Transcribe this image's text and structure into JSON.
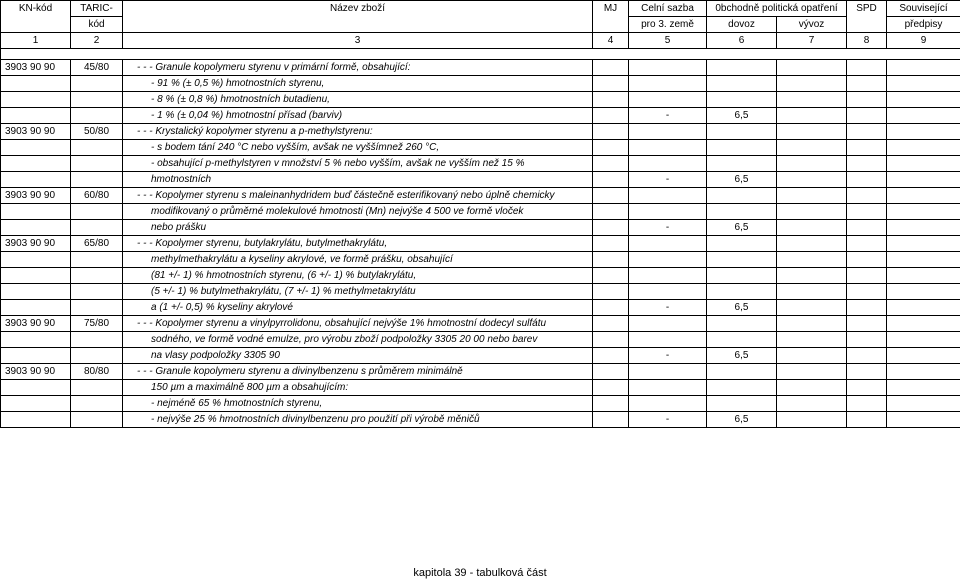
{
  "header": {
    "c1a": "KN-kód",
    "c1b": "",
    "c2a": "TARIC-",
    "c2b": "kód",
    "c3a": "Název zboží",
    "c3b": "",
    "c4a": "MJ",
    "c4b": "",
    "c5a": "Celní sazba",
    "c5b": "pro 3. země",
    "c67a": "0bchodně politická opatření",
    "c6b": "dovoz",
    "c7b": "vývoz",
    "c8a": "SPD",
    "c8b": "",
    "c9a": "Související",
    "c9b": "předpisy",
    "n1": "1",
    "n2": "2",
    "n3": "3",
    "n4": "4",
    "n5": "5",
    "n6": "6",
    "n7": "7",
    "n8": "8",
    "n9": "9"
  },
  "rows": [
    {
      "kn": "3903 90 90",
      "taric": "45/80",
      "desc": "- - - Granule kopolymeru styrenu v primární formě, obsahující:",
      "ital": true
    },
    {
      "desc": "- 91 % (± 0,5 %) hmotnostních styrenu,",
      "ital": true,
      "ind": "ind2"
    },
    {
      "desc": "- 8 % (± 0,8 %) hmotnostních butadienu,",
      "ital": true,
      "ind": "ind2"
    },
    {
      "desc": "- 1 % (± 0,04 %) hmotnostní přísad (barviv)",
      "ital": true,
      "ind": "ind2",
      "c5": "-",
      "c6": "6,5"
    },
    {
      "kn": "3903 90 90",
      "taric": "50/80",
      "desc": "- - - Krystalický kopolymer styrenu a p-methylstyrenu:",
      "ital": true
    },
    {
      "desc": "- s bodem tání 240 °C nebo vyšším, avšak ne vyššímnež 260 °C,",
      "ital": true,
      "ind": "ind2"
    },
    {
      "desc": "- obsahující p-methylstyren v množství 5 % nebo vyšším, avšak ne vyšším než 15 %",
      "ital": true,
      "ind": "ind2"
    },
    {
      "desc": "hmotnostních",
      "ital": true,
      "ind": "ind2",
      "c5": "-",
      "c6": "6,5"
    },
    {
      "kn": "3903 90 90",
      "taric": "60/80",
      "desc": "- - - Kopolymer styrenu s maleinanhydridem buď částečně esterifikovaný nebo úplně chemicky",
      "ital": true
    },
    {
      "desc": "modifikovaný o průměrné molekulové hmotnosti (Mn) nejvýše 4 500 ve formě vloček",
      "ital": true,
      "ind": "ind2"
    },
    {
      "desc": "nebo prášku",
      "ital": true,
      "ind": "ind2",
      "c5": "-",
      "c6": "6,5"
    },
    {
      "kn": "3903 90 90",
      "taric": "65/80",
      "desc": "- - - Kopolymer styrenu, butylakrylátu, butylmethakrylátu,",
      "ital": true
    },
    {
      "desc": "methylmethakrylátu a kyseliny akrylové, ve formě prášku, obsahující",
      "ital": true,
      "ind": "ind2"
    },
    {
      "desc": "(81 +/- 1) % hmotnostních styrenu, (6 +/- 1) % butylakrylátu,",
      "ital": true,
      "ind": "ind2"
    },
    {
      "desc": "(5 +/- 1) % butylmethakrylátu, (7 +/- 1) % methylmetakrylátu",
      "ital": true,
      "ind": "ind2"
    },
    {
      "desc": "a (1 +/- 0,5) % kyseliny akrylové",
      "ital": true,
      "ind": "ind2",
      "c5": "-",
      "c6": "6,5"
    },
    {
      "kn": "3903 90 90",
      "taric": "75/80",
      "desc": "- - - Kopolymer styrenu a vinylpyrrolidonu, obsahující nejvýše 1% hmotnostní dodecyl sulfátu",
      "ital": true
    },
    {
      "desc": "sodného, ve formě vodné emulze, pro výrobu zboží podpoložky 3305 20 00 nebo barev",
      "ital": true,
      "ind": "ind2"
    },
    {
      "desc": "na vlasy podpoložky 3305 90",
      "ital": true,
      "ind": "ind2",
      "c5": "-",
      "c6": "6,5"
    },
    {
      "kn": "3903 90 90",
      "taric": "80/80",
      "desc": "- - - Granule kopolymeru styrenu a divinylbenzenu s průměrem minimálně",
      "ital": true
    },
    {
      "desc": "150 µm a maximálně 800 µm a obsahujícím:",
      "ital": true,
      "ind": "ind2"
    },
    {
      "desc": "- nejméně 65 % hmotnostních styrenu,",
      "ital": true,
      "ind": "ind2"
    },
    {
      "desc": "- nejvýše 25 % hmotnostních divinylbenzenu pro použití při výrobě měničů",
      "ital": true,
      "ind": "ind2",
      "c5": "-",
      "c6": "6,5"
    }
  ],
  "footer": "kapitola 39 - tabulková část"
}
